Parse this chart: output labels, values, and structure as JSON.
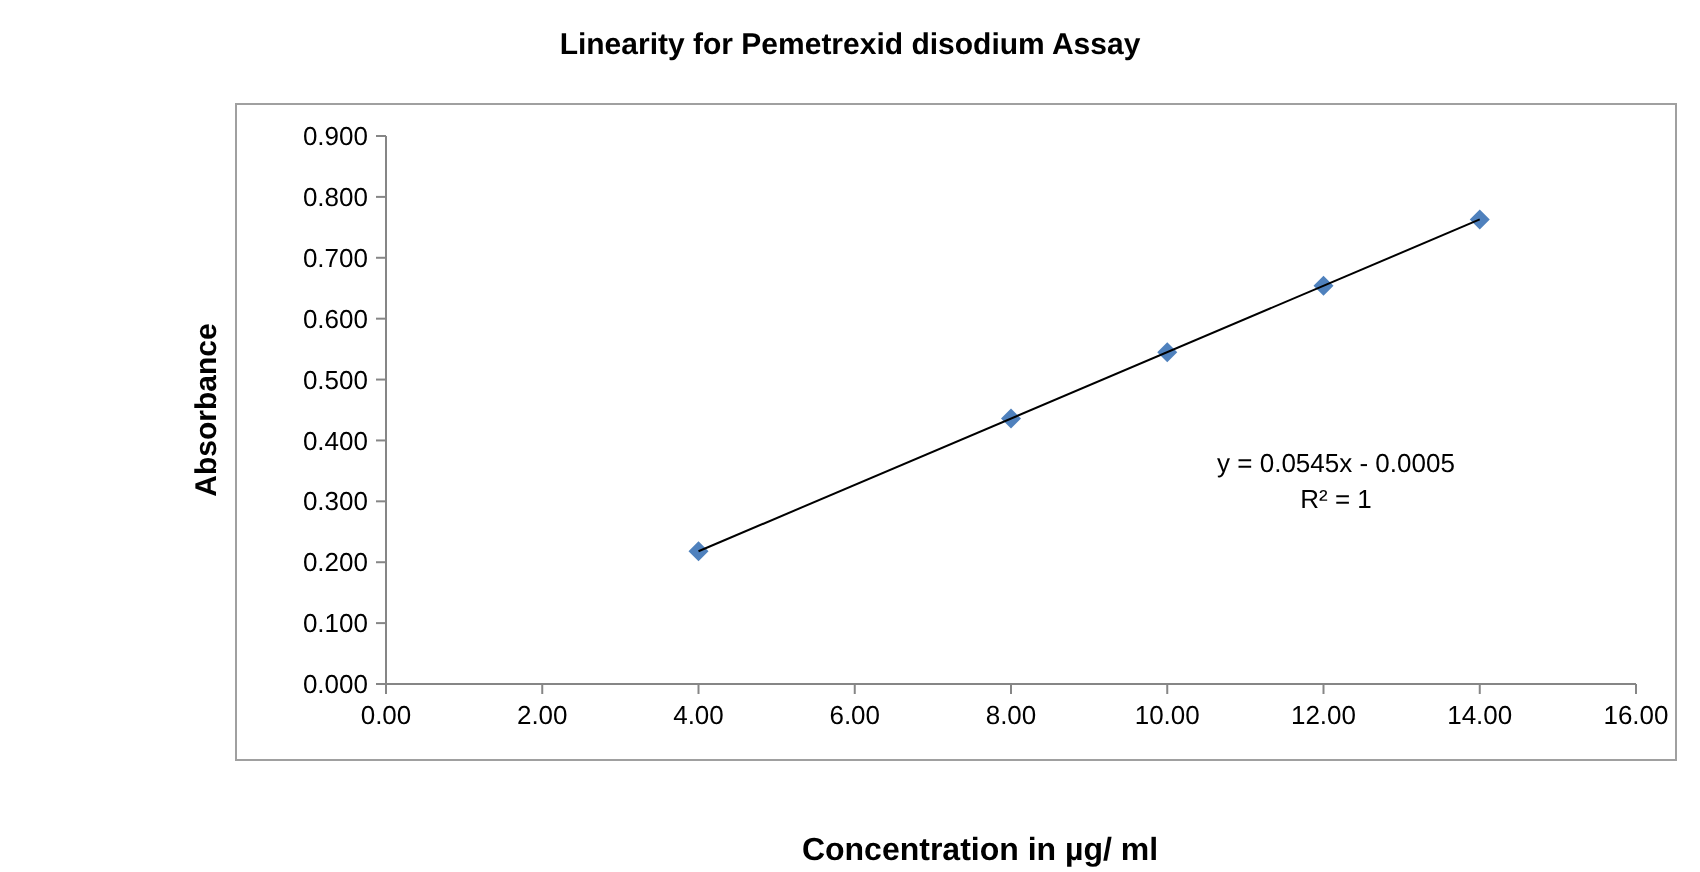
{
  "chart_data": {
    "type": "scatter",
    "title": "Linearity for Pemetrexid disodium Assay",
    "xlabel": "Concentration in µg/ ml",
    "ylabel": "Absorbance",
    "series": [
      {
        "color": "#4f81bd",
        "marker": "diamond",
        "x": [
          4,
          8,
          10,
          12,
          14
        ],
        "values": [
          0.218,
          0.436,
          0.545,
          0.654,
          0.763
        ]
      },
      {
        "type": "line",
        "color": "#000000",
        "marker": "none",
        "line_style": "solid",
        "x": [
          4,
          14
        ],
        "values": [
          0.218,
          0.763
        ]
      }
    ],
    "annotations": [
      "y = 0.0545x - 0.0005",
      "R² = 1"
    ],
    "xlim": [
      0,
      16
    ],
    "xticks": [
      {
        "value": 0,
        "label": "0.00"
      },
      {
        "value": 2,
        "label": "2.00"
      },
      {
        "value": 4,
        "label": "4.00"
      },
      {
        "value": 6,
        "label": "6.00"
      },
      {
        "value": 8,
        "label": "8.00"
      },
      {
        "value": 10,
        "label": "10.00"
      },
      {
        "value": 12,
        "label": "12.00"
      },
      {
        "value": 14,
        "label": "14.00"
      },
      {
        "value": 16,
        "label": "16.00"
      }
    ],
    "ylim": [
      0,
      0.9
    ],
    "yticks": [
      {
        "value": 0,
        "label": "0.000"
      },
      {
        "value": 0.1,
        "label": "0.100"
      },
      {
        "value": 0.2,
        "label": "0.200"
      },
      {
        "value": 0.3,
        "label": "0.300"
      },
      {
        "value": 0.4,
        "label": "0.400"
      },
      {
        "value": 0.5,
        "label": "0.500"
      },
      {
        "value": 0.6,
        "label": "0.600"
      },
      {
        "value": 0.7,
        "label": "0.700"
      },
      {
        "value": 0.8,
        "label": "0.800"
      },
      {
        "value": 0.9,
        "label": "0.900"
      }
    ],
    "grid": false
  }
}
